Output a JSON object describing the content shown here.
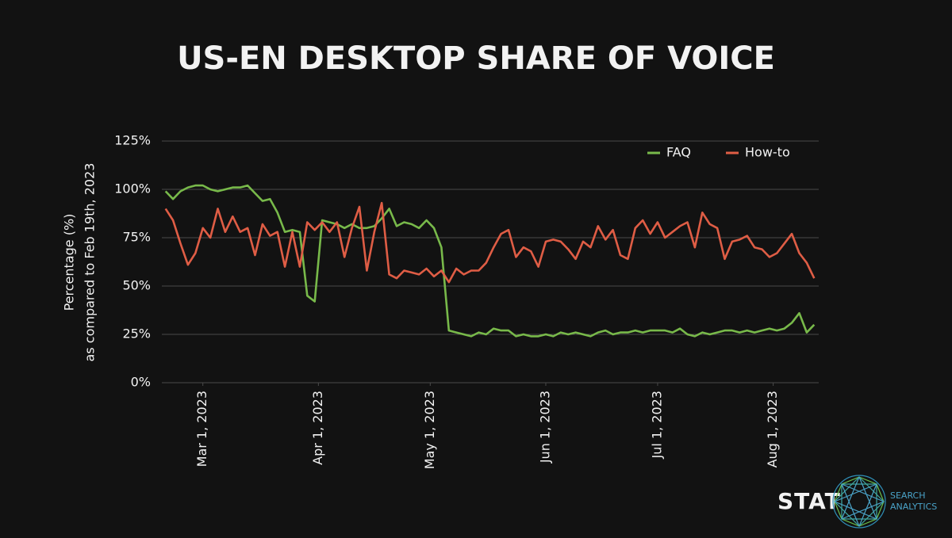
{
  "chart_data": {
    "type": "line",
    "title": "US-EN DESKTOP SHARE OF VOICE",
    "ylabel": [
      "Percentage (%)",
      "as compared to Feb 19th, 2023"
    ],
    "x": [
      "2023-02-19",
      "2023-02-21",
      "2023-02-23",
      "2023-02-25",
      "2023-02-27",
      "2023-03-01",
      "2023-03-03",
      "2023-03-05",
      "2023-03-07",
      "2023-03-09",
      "2023-03-11",
      "2023-03-13",
      "2023-03-15",
      "2023-03-17",
      "2023-03-19",
      "2023-03-21",
      "2023-03-23",
      "2023-03-25",
      "2023-03-27",
      "2023-03-29",
      "2023-03-31",
      "2023-04-02",
      "2023-04-04",
      "2023-04-06",
      "2023-04-08",
      "2023-04-10",
      "2023-04-12",
      "2023-04-14",
      "2023-04-16",
      "2023-04-18",
      "2023-04-20",
      "2023-04-22",
      "2023-04-24",
      "2023-04-26",
      "2023-04-28",
      "2023-04-30",
      "2023-05-02",
      "2023-05-04",
      "2023-05-06",
      "2023-05-08",
      "2023-05-10",
      "2023-05-12",
      "2023-05-14",
      "2023-05-16",
      "2023-05-18",
      "2023-05-20",
      "2023-05-22",
      "2023-05-24",
      "2023-05-26",
      "2023-05-28",
      "2023-05-30",
      "2023-06-01",
      "2023-06-03",
      "2023-06-05",
      "2023-06-07",
      "2023-06-09",
      "2023-06-11",
      "2023-06-13",
      "2023-06-15",
      "2023-06-17",
      "2023-06-19",
      "2023-06-21",
      "2023-06-23",
      "2023-06-25",
      "2023-06-27",
      "2023-06-29",
      "2023-07-01",
      "2023-07-03",
      "2023-07-05",
      "2023-07-07",
      "2023-07-09",
      "2023-07-11",
      "2023-07-13",
      "2023-07-15",
      "2023-07-17",
      "2023-07-19",
      "2023-07-21",
      "2023-07-23",
      "2023-07-25",
      "2023-07-27",
      "2023-07-29",
      "2023-07-31",
      "2023-08-02",
      "2023-08-04",
      "2023-08-06",
      "2023-08-08",
      "2023-08-10",
      "2023-08-12"
    ],
    "series": [
      {
        "name": "FAQ",
        "color": "#78b94a",
        "values": [
          99,
          95,
          99,
          101,
          102,
          102,
          100,
          99,
          100,
          101,
          101,
          102,
          98,
          94,
          95,
          88,
          78,
          79,
          78,
          45,
          42,
          84,
          83,
          82,
          80,
          82,
          80,
          80,
          81,
          85,
          90,
          81,
          83,
          82,
          80,
          84,
          80,
          70,
          27,
          26,
          25,
          24,
          26,
          25,
          28,
          27,
          27,
          24,
          25,
          24,
          24,
          25,
          24,
          26,
          25,
          26,
          25,
          24,
          26,
          27,
          25,
          26,
          26,
          27,
          26,
          27,
          27,
          27,
          26,
          28,
          25,
          24,
          26,
          25,
          26,
          27,
          27,
          26,
          27,
          26,
          27,
          28,
          27,
          28,
          31,
          36,
          26,
          30
        ]
      },
      {
        "name": "How-to",
        "color": "#df5d45",
        "values": [
          90,
          84,
          72,
          61,
          67,
          80,
          75,
          90,
          78,
          86,
          78,
          80,
          66,
          82,
          76,
          78,
          60,
          78,
          60,
          83,
          79,
          83,
          78,
          83,
          65,
          80,
          91,
          58,
          78,
          93,
          56,
          54,
          58,
          57,
          56,
          59,
          55,
          58,
          52,
          59,
          56,
          58,
          58,
          62,
          70,
          77,
          79,
          65,
          70,
          68,
          60,
          73,
          74,
          73,
          69,
          64,
          73,
          70,
          81,
          74,
          79,
          66,
          64,
          80,
          84,
          77,
          83,
          75,
          78,
          81,
          83,
          70,
          88,
          82,
          80,
          64,
          73,
          74,
          76,
          70,
          69,
          65,
          67,
          72,
          77,
          67,
          62,
          54
        ]
      }
    ],
    "xlim": [
      "2023-02-18",
      "2023-08-13"
    ],
    "xticks": [
      {
        "value": "2023-03-01",
        "label": "Mar 1, 2023"
      },
      {
        "value": "2023-04-01",
        "label": "Apr 1, 2023"
      },
      {
        "value": "2023-05-01",
        "label": "May 1, 2023"
      },
      {
        "value": "2023-06-01",
        "label": "Jun 1, 2023"
      },
      {
        "value": "2023-07-01",
        "label": "Jul 1, 2023"
      },
      {
        "value": "2023-08-01",
        "label": "Aug 1, 2023"
      }
    ],
    "ylim": [
      0,
      125
    ],
    "yticks": [
      {
        "value": 0,
        "label": "0%"
      },
      {
        "value": 25,
        "label": "25%"
      },
      {
        "value": 50,
        "label": "50%"
      },
      {
        "value": 75,
        "label": "75%"
      },
      {
        "value": 100,
        "label": "100%"
      },
      {
        "value": 125,
        "label": "125%"
      }
    ],
    "grid": true,
    "legend": "top-right"
  },
  "logo": {
    "brand": "STAT",
    "tagline": [
      "SEARCH",
      "ANALYTICS"
    ]
  }
}
